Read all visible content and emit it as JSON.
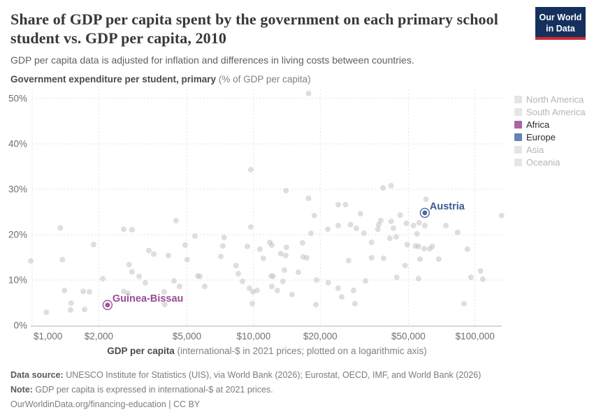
{
  "header": {
    "title": "Share of GDP per capita spent by the government on each primary school student vs. GDP per capita, 2010",
    "subtitle": "GDP per capita data is adjusted for inflation and differences in living costs between countries.",
    "logo": {
      "line1": "Our World",
      "line2": "in Data"
    }
  },
  "axis": {
    "y_bold": "Government expenditure per student, primary",
    "y_rest": " (% of GDP per capita)",
    "x_bold": "GDP per capita",
    "x_rest": " (international-$ in 2021 prices; plotted on a logarithmic axis)"
  },
  "legend": {
    "items": [
      {
        "label": "North America",
        "color": "#e5e5e5",
        "active": false
      },
      {
        "label": "South America",
        "color": "#e5e5e5",
        "active": false
      },
      {
        "label": "Africa",
        "color": "#a864a4",
        "active": true
      },
      {
        "label": "Europe",
        "color": "#6583b3",
        "active": true
      },
      {
        "label": "Asia",
        "color": "#e5e5e5",
        "active": false
      },
      {
        "label": "Oceania",
        "color": "#e5e5e5",
        "active": false
      }
    ]
  },
  "colors": {
    "europe": "#4c6a9c",
    "africa": "#9c4f9b",
    "austria_label": "#3d5c8f",
    "guinea_bissau_label": "#994d93",
    "dot": "#c2c2c2",
    "grid": "#e2e2e2",
    "axis_line": "#b0b0b0",
    "tick_text": "#6f6f6f",
    "logo_bg": "#16305e",
    "logo_red": "#c82d31"
  },
  "chart_data": {
    "type": "scatter",
    "title": "Share of GDP per capita spent by the government on each primary school student vs. GDP per capita, 2010",
    "xlabel": "GDP per capita (international-$ in 2021 prices; plotted on a logarithmic axis)",
    "ylabel": "Government expenditure per student, primary (% of GDP per capita)",
    "x_scale": "log",
    "x_domain": [
      1000,
      132000
    ],
    "y_domain": [
      0,
      52
    ],
    "grid": true,
    "legend_position": "right",
    "x_ticks": [
      {
        "value": 1000,
        "label": "$1,000"
      },
      {
        "value": 2000,
        "label": "$2,000"
      },
      {
        "value": 5000,
        "label": "$5,000"
      },
      {
        "value": 10000,
        "label": "$10,000"
      },
      {
        "value": 20000,
        "label": "$20,000"
      },
      {
        "value": 50000,
        "label": "$50,000"
      },
      {
        "value": 100000,
        "label": "$100,000"
      }
    ],
    "y_ticks": [
      {
        "value": 0,
        "label": "0%"
      },
      {
        "value": 10,
        "label": "10%"
      },
      {
        "value": 20,
        "label": "20%"
      },
      {
        "value": 30,
        "label": "30%"
      },
      {
        "value": 40,
        "label": "40%"
      },
      {
        "value": 50,
        "label": "50%"
      }
    ],
    "highlighted": [
      {
        "name": "Austria",
        "continent": "Europe",
        "gdp": 59300,
        "value": 24.8,
        "color": "#4c6a9c",
        "label_color": "#3d5c8f"
      },
      {
        "name": "Guinea-Bissau",
        "continent": "Africa",
        "gdp": 2190,
        "value": 4.5,
        "color": "#9c4f9b",
        "label_color": "#994d93"
      }
    ],
    "points": [
      [
        986,
        14.2
      ],
      [
        1160,
        2.9
      ],
      [
        1340,
        21.5
      ],
      [
        1370,
        14.5
      ],
      [
        1400,
        7.7
      ],
      [
        1490,
        3.4
      ],
      [
        1500,
        4.9
      ],
      [
        1700,
        7.5
      ],
      [
        1725,
        3.5
      ],
      [
        1815,
        7.4
      ],
      [
        1895,
        17.8
      ],
      [
        2085,
        10.3
      ],
      [
        2590,
        21.2
      ],
      [
        2590,
        7.5
      ],
      [
        2705,
        7.1
      ],
      [
        2740,
        13.4
      ],
      [
        2825,
        21.1
      ],
      [
        2825,
        11.8
      ],
      [
        3040,
        10.8
      ],
      [
        3245,
        9.4
      ],
      [
        3365,
        16.5
      ],
      [
        3540,
        15.7
      ],
      [
        3945,
        7.4
      ],
      [
        3970,
        4.6
      ],
      [
        4120,
        15.4
      ],
      [
        4370,
        9.8
      ],
      [
        4465,
        23.1
      ],
      [
        4630,
        8.6
      ],
      [
        4905,
        17.7
      ],
      [
        5010,
        14.5
      ],
      [
        5430,
        19.7
      ],
      [
        5590,
        10.9
      ],
      [
        5715,
        10.8
      ],
      [
        6015,
        8.6
      ],
      [
        7110,
        15.2
      ],
      [
        7265,
        17.5
      ],
      [
        7365,
        19.4
      ],
      [
        8335,
        13.2
      ],
      [
        8530,
        11.4
      ],
      [
        8910,
        9.7
      ],
      [
        9375,
        17.4
      ],
      [
        9575,
        8.2
      ],
      [
        9710,
        21.7
      ],
      [
        9710,
        34.3
      ],
      [
        9865,
        4.8
      ],
      [
        9930,
        7.4
      ],
      [
        10370,
        7.7
      ],
      [
        10670,
        16.8
      ],
      [
        11070,
        14.8
      ],
      [
        11830,
        18.3
      ],
      [
        12000,
        10.9
      ],
      [
        12080,
        17.7
      ],
      [
        12080,
        8.6
      ],
      [
        12250,
        10.8
      ],
      [
        12800,
        7.7
      ],
      [
        13270,
        15.8
      ],
      [
        13560,
        9.7
      ],
      [
        13770,
        12.2
      ],
      [
        13970,
        15.4
      ],
      [
        14000,
        29.7
      ],
      [
        14070,
        17.2
      ],
      [
        14900,
        6.8
      ],
      [
        15920,
        11.7
      ],
      [
        16630,
        18.2
      ],
      [
        16750,
        15.1
      ],
      [
        17380,
        14.9
      ],
      [
        17700,
        51.1
      ],
      [
        17700,
        28.0
      ],
      [
        18150,
        20.3
      ],
      [
        18800,
        24.2
      ],
      [
        19100,
        4.6
      ],
      [
        19230,
        10.0
      ],
      [
        21600,
        21.2
      ],
      [
        21750,
        9.4
      ],
      [
        24100,
        26.6
      ],
      [
        24100,
        22.0
      ],
      [
        24100,
        8.2
      ],
      [
        25000,
        6.3
      ],
      [
        26000,
        26.6
      ],
      [
        26850,
        14.3
      ],
      [
        27400,
        22.2
      ],
      [
        28250,
        7.7
      ],
      [
        28650,
        4.8
      ],
      [
        29100,
        21.4
      ],
      [
        30400,
        24.6
      ],
      [
        31500,
        20.3
      ],
      [
        32000,
        9.8
      ],
      [
        34100,
        18.3
      ],
      [
        34100,
        14.9
      ],
      [
        36400,
        21.2
      ],
      [
        36700,
        22.2
      ],
      [
        37500,
        23.1
      ],
      [
        38400,
        30.3
      ],
      [
        38600,
        14.8
      ],
      [
        41200,
        19.2
      ],
      [
        41800,
        30.8
      ],
      [
        41800,
        22.9
      ],
      [
        42800,
        21.4
      ],
      [
        44000,
        19.5
      ],
      [
        44300,
        10.6
      ],
      [
        45900,
        24.3
      ],
      [
        48300,
        13.2
      ],
      [
        49000,
        22.5
      ],
      [
        49400,
        17.8
      ],
      [
        52700,
        22.0
      ],
      [
        53900,
        17.5
      ],
      [
        54700,
        20.2
      ],
      [
        55500,
        17.4
      ],
      [
        55500,
        10.3
      ],
      [
        55900,
        22.6
      ],
      [
        56400,
        14.6
      ],
      [
        58900,
        16.9
      ],
      [
        59300,
        22.0
      ],
      [
        60100,
        27.8
      ],
      [
        62400,
        16.9
      ],
      [
        64100,
        17.4
      ],
      [
        68600,
        14.6
      ],
      [
        73800,
        22.0
      ],
      [
        83400,
        20.5
      ],
      [
        89100,
        4.8
      ],
      [
        92300,
        16.8
      ],
      [
        95800,
        10.6
      ],
      [
        105900,
        12.0
      ],
      [
        108400,
        10.2
      ],
      [
        131800,
        24.2
      ]
    ]
  },
  "footer": {
    "source_label": "Data source:",
    "source_text": " UNESCO Institute for Statistics (UIS), via World Bank (2026); Eurostat, OECD, IMF, and World Bank (2026)",
    "note_label": "Note:",
    "note_text": " GDP per capita is expressed in international-$ at 2021 prices.",
    "link": "OurWorldinData.org/financing-education",
    "license": " | CC BY"
  }
}
